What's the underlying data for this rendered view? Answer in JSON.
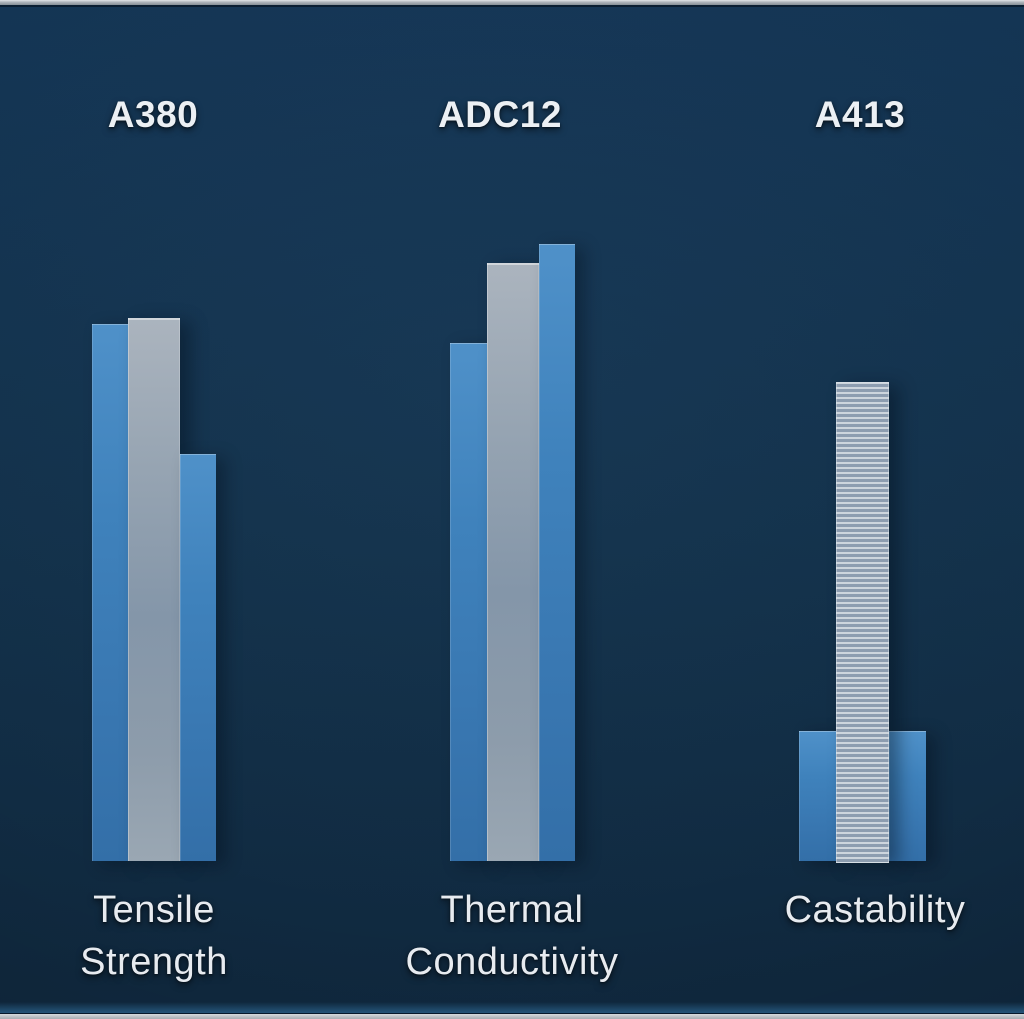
{
  "labels": {
    "top": [
      {
        "text": "A380"
      },
      {
        "text": "ADC12"
      },
      {
        "text": "A413"
      }
    ],
    "bottom": [
      {
        "lines": [
          "Tensile",
          "Strength"
        ]
      },
      {
        "lines": [
          "Thermal",
          "Conductivity"
        ]
      },
      {
        "lines": [
          "Castability"
        ]
      }
    ]
  },
  "colors": {
    "background": "#12304b",
    "bar_blue": "#3d7fba",
    "bar_silver": "#94a3b2",
    "text": "#e9edf1"
  },
  "chart_data": {
    "type": "bar",
    "title": "",
    "xlabel": "",
    "ylabel": "",
    "categories": [
      "Tensile Strength",
      "Thermal Conductivity",
      "Castability"
    ],
    "series": [
      {
        "name": "A380",
        "color": "#3d7fba",
        "style": "solid-blue",
        "values": [
          87,
          84,
          21
        ]
      },
      {
        "name": "ADC12",
        "color": "#94a3b2",
        "style": "solid-silver; striped texture in Castability",
        "values": [
          88,
          97,
          78
        ]
      },
      {
        "name": "A413",
        "color": "#3d7fba",
        "style": "solid-blue",
        "values": [
          66,
          100,
          21
        ]
      }
    ],
    "ylim": [
      0,
      100
    ],
    "grid": false,
    "legend_position": "none",
    "value_labels_shown": false,
    "note": "No numeric axis shown; values are relative bar heights (tallest bar = 100)"
  }
}
